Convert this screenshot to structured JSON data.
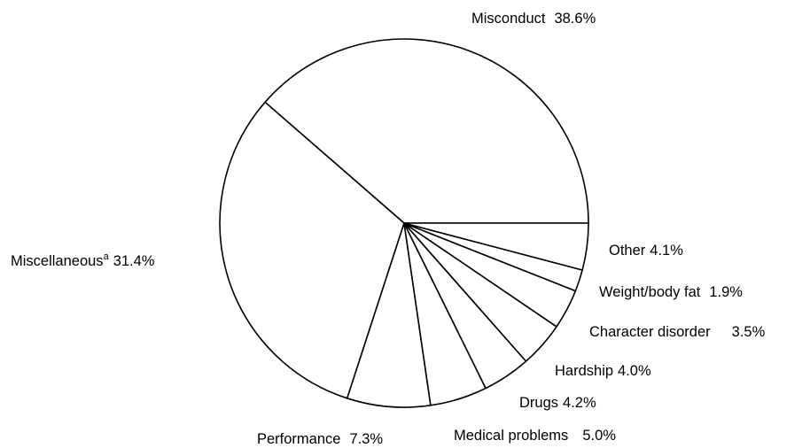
{
  "chart_data": {
    "type": "pie",
    "title": "",
    "start": "3 o'clock",
    "direction": "counterclockwise",
    "colors": {
      "fill": "#ffffff",
      "stroke": "#000000"
    },
    "slices": [
      {
        "key": "misconduct",
        "label": "Misconduct",
        "value": 38.6,
        "value_text": "38.6%"
      },
      {
        "key": "miscellaneous",
        "label": "Miscellaneous",
        "superscript": "a",
        "value": 31.4,
        "value_text": "31.4%"
      },
      {
        "key": "performance",
        "label": "Performance",
        "value": 7.3,
        "value_text": "7.3%"
      },
      {
        "key": "medical",
        "label": "Medical problems",
        "value": 5.0,
        "value_text": "5.0%"
      },
      {
        "key": "drugs",
        "label": "Drugs",
        "value": 4.2,
        "value_text": "4.2%"
      },
      {
        "key": "hardship",
        "label": "Hardship",
        "value": 4.0,
        "value_text": "4.0%"
      },
      {
        "key": "character",
        "label": "Character disorder",
        "value": 3.5,
        "value_text": "3.5%"
      },
      {
        "key": "weight",
        "label": "Weight/body fat",
        "value": 1.9,
        "value_text": "1.9%"
      },
      {
        "key": "other",
        "label": "Other",
        "value": 4.1,
        "value_text": "4.1%"
      }
    ]
  }
}
